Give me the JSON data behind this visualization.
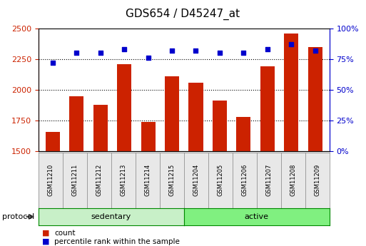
{
  "title": "GDS654 / D45247_at",
  "samples": [
    "GSM11210",
    "GSM11211",
    "GSM11212",
    "GSM11213",
    "GSM11214",
    "GSM11215",
    "GSM11204",
    "GSM11205",
    "GSM11206",
    "GSM11207",
    "GSM11208",
    "GSM11209"
  ],
  "counts": [
    1660,
    1950,
    1880,
    2210,
    1740,
    2110,
    2060,
    1910,
    1780,
    2190,
    2460,
    2350
  ],
  "percentiles": [
    72,
    80,
    80,
    83,
    76,
    82,
    82,
    80,
    80,
    83,
    87,
    82
  ],
  "groups": [
    "sedentary",
    "sedentary",
    "sedentary",
    "sedentary",
    "sedentary",
    "sedentary",
    "active",
    "active",
    "active",
    "active",
    "active",
    "active"
  ],
  "group_colors": {
    "sedentary": "#c8f0c8",
    "active": "#80f080"
  },
  "bar_color": "#cc2200",
  "dot_color": "#0000cc",
  "ylim_left": [
    1500,
    2500
  ],
  "ylim_right": [
    0,
    100
  ],
  "yticks_left": [
    1500,
    1750,
    2000,
    2250,
    2500
  ],
  "yticks_right": [
    0,
    25,
    50,
    75,
    100
  ],
  "bar_width": 0.6,
  "left_axis_color": "#cc2200",
  "right_axis_color": "#0000cc",
  "protocol_label": "protocol",
  "legend_items": [
    {
      "label": "count",
      "color": "#cc2200"
    },
    {
      "label": "percentile rank within the sample",
      "color": "#0000cc"
    }
  ]
}
